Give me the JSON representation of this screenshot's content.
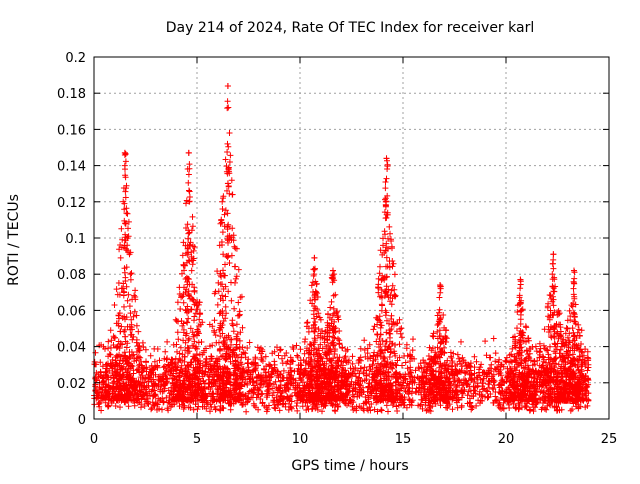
{
  "chart_data": {
    "type": "scatter",
    "title": "Day 214 of 2024, Rate Of TEC Index for receiver karl",
    "xlabel": "GPS time / hours",
    "ylabel": "ROTI / TECUs",
    "xlim": [
      0,
      25
    ],
    "ylim": [
      0,
      0.2
    ],
    "x_ticks": [
      "0",
      "5",
      "10",
      "15",
      "20",
      "25"
    ],
    "y_ticks": [
      "0",
      "0.02",
      "0.04",
      "0.06",
      "0.08",
      "0.1",
      "0.12",
      "0.14",
      "0.16",
      "0.18",
      "0.2"
    ],
    "grid": true,
    "marker": "plus",
    "color": "#ff0000",
    "x_range_of_data": [
      0,
      24
    ],
    "peaks": [
      {
        "x": 1.5,
        "y": 0.147
      },
      {
        "x": 4.6,
        "y": 0.147
      },
      {
        "x": 6.5,
        "y": 0.184
      },
      {
        "x": 10.7,
        "y": 0.089
      },
      {
        "x": 11.6,
        "y": 0.082
      },
      {
        "x": 14.2,
        "y": 0.144
      },
      {
        "x": 16.8,
        "y": 0.074
      },
      {
        "x": 20.7,
        "y": 0.077
      },
      {
        "x": 22.3,
        "y": 0.091
      },
      {
        "x": 23.3,
        "y": 0.082
      }
    ]
  }
}
